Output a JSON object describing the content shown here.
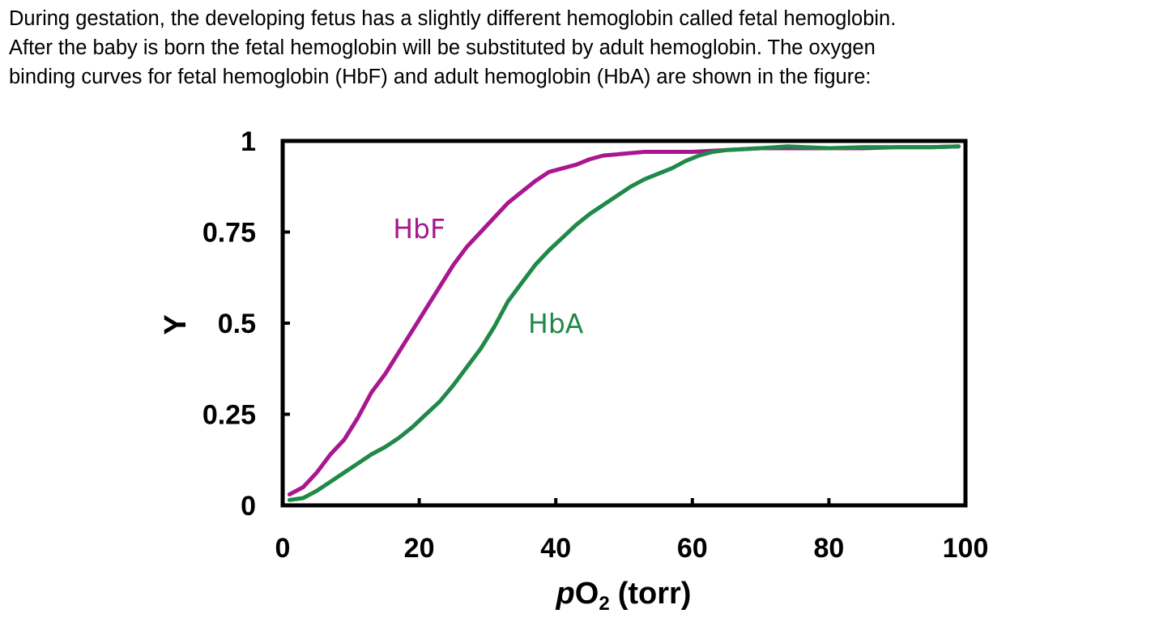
{
  "intro": {
    "lines": [
      "During gestation, the developing fetus has a slightly different hemoglobin called fetal hemoglobin.",
      "After the baby is born the fetal hemoglobin will be substituted by adult hemoglobin. The oxygen",
      "binding curves for fetal hemoglobin (HbF) and adult hemoglobin (HbA) are shown in the figure:"
    ]
  },
  "chart_data": {
    "type": "line",
    "title": "",
    "xlabel_italic": "p",
    "xlabel_main": "O",
    "xlabel_sub": "2",
    "xlabel_unit": "(torr)",
    "ylabel": "Y",
    "xlim": [
      0,
      100
    ],
    "ylim": [
      0,
      1
    ],
    "x_ticks": [
      {
        "value": 0,
        "label": "0"
      },
      {
        "value": 20,
        "label": "20"
      },
      {
        "value": 40,
        "label": "40"
      },
      {
        "value": 60,
        "label": "60"
      },
      {
        "value": 80,
        "label": "80"
      },
      {
        "value": 100,
        "label": "100"
      }
    ],
    "y_ticks": [
      {
        "value": 0,
        "label": "0"
      },
      {
        "value": 0.25,
        "label": "0.25"
      },
      {
        "value": 0.5,
        "label": "0.5"
      },
      {
        "value": 0.75,
        "label": "0.75"
      },
      {
        "value": 1,
        "label": "1"
      }
    ],
    "grid": false,
    "series": [
      {
        "name": "HbF",
        "color": "#a8178f",
        "label_at": [
          20,
          0.76
        ],
        "points": [
          [
            1,
            0.03
          ],
          [
            3,
            0.05
          ],
          [
            5,
            0.09
          ],
          [
            7,
            0.14
          ],
          [
            9,
            0.18
          ],
          [
            11,
            0.24
          ],
          [
            13,
            0.31
          ],
          [
            15,
            0.36
          ],
          [
            17,
            0.42
          ],
          [
            19,
            0.48
          ],
          [
            21,
            0.54
          ],
          [
            23,
            0.6
          ],
          [
            25,
            0.66
          ],
          [
            27,
            0.71
          ],
          [
            29,
            0.75
          ],
          [
            31,
            0.79
          ],
          [
            33,
            0.83
          ],
          [
            35,
            0.86
          ],
          [
            37,
            0.89
          ],
          [
            39,
            0.915
          ],
          [
            41,
            0.925
          ],
          [
            43,
            0.935
          ],
          [
            45,
            0.95
          ],
          [
            47,
            0.96
          ],
          [
            50,
            0.965
          ],
          [
            53,
            0.97
          ],
          [
            56,
            0.97
          ],
          [
            60,
            0.97
          ],
          [
            65,
            0.975
          ],
          [
            70,
            0.98
          ],
          [
            75,
            0.98
          ],
          [
            80,
            0.98
          ],
          [
            85,
            0.98
          ],
          [
            90,
            0.983
          ],
          [
            95,
            0.983
          ],
          [
            99,
            0.985
          ]
        ]
      },
      {
        "name": "HbA",
        "color": "#1f8a48",
        "label_at": [
          40,
          0.5
        ],
        "points": [
          [
            1,
            0.015
          ],
          [
            3,
            0.02
          ],
          [
            5,
            0.04
          ],
          [
            7,
            0.065
          ],
          [
            9,
            0.09
          ],
          [
            11,
            0.115
          ],
          [
            13,
            0.14
          ],
          [
            15,
            0.16
          ],
          [
            17,
            0.185
          ],
          [
            19,
            0.215
          ],
          [
            21,
            0.25
          ],
          [
            23,
            0.285
          ],
          [
            25,
            0.33
          ],
          [
            27,
            0.38
          ],
          [
            29,
            0.43
          ],
          [
            31,
            0.49
          ],
          [
            33,
            0.56
          ],
          [
            35,
            0.61
          ],
          [
            37,
            0.66
          ],
          [
            39,
            0.7
          ],
          [
            41,
            0.735
          ],
          [
            43,
            0.77
          ],
          [
            45,
            0.8
          ],
          [
            47,
            0.825
          ],
          [
            49,
            0.85
          ],
          [
            51,
            0.875
          ],
          [
            53,
            0.895
          ],
          [
            55,
            0.91
          ],
          [
            57,
            0.925
          ],
          [
            59,
            0.945
          ],
          [
            61,
            0.96
          ],
          [
            63,
            0.97
          ],
          [
            65,
            0.975
          ],
          [
            70,
            0.98
          ],
          [
            74,
            0.985
          ],
          [
            80,
            0.98
          ],
          [
            85,
            0.983
          ],
          [
            90,
            0.983
          ],
          [
            95,
            0.983
          ],
          [
            99,
            0.985
          ]
        ]
      }
    ]
  }
}
